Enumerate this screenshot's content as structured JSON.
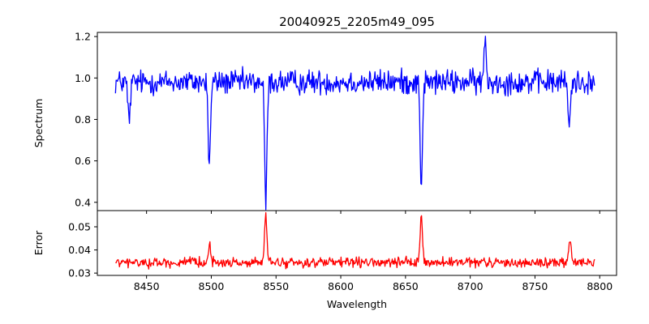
{
  "figure": {
    "title": "20040925_2205m49_095",
    "xlabel": "Wavelength"
  },
  "chart_data": [
    {
      "type": "line",
      "name": "spectrum-panel",
      "title": "20040925_2205m49_095",
      "xlabel": "",
      "ylabel": "Spectrum",
      "xlim": [
        8412,
        8813
      ],
      "ylim": [
        0.36,
        1.22
      ],
      "xticks": [
        8450,
        8500,
        8550,
        8600,
        8650,
        8700,
        8750,
        8800
      ],
      "yticks": [
        0.4,
        0.6,
        0.8,
        1.0,
        1.2
      ],
      "ytick_labels": [
        "0.4",
        "0.6",
        "0.8",
        "1.0",
        "1.2"
      ],
      "grid": false,
      "series": [
        {
          "color": "#0000ff",
          "x_range": [
            8426,
            8796
          ],
          "baseline": 0.98,
          "noise_amplitude": 0.045,
          "features": [
            {
              "x": 8436.5,
              "y": 0.79
            },
            {
              "x": 8498.5,
              "y": 0.58
            },
            {
              "x": 8542.1,
              "y": 0.39
            },
            {
              "x": 8662.2,
              "y": 0.49
            },
            {
              "x": 8711.5,
              "y": 1.17
            },
            {
              "x": 8776.5,
              "y": 0.76
            }
          ]
        }
      ]
    },
    {
      "type": "line",
      "name": "error-panel",
      "xlabel": "Wavelength",
      "ylabel": "Error",
      "xlim": [
        8412,
        8813
      ],
      "ylim": [
        0.029,
        0.057
      ],
      "xticks": [
        8450,
        8500,
        8550,
        8600,
        8650,
        8700,
        8750,
        8800
      ],
      "xtick_labels": [
        "8450",
        "8500",
        "8550",
        "8600",
        "8650",
        "8700",
        "8750",
        "8800"
      ],
      "yticks": [
        0.03,
        0.04,
        0.05
      ],
      "ytick_labels": [
        "0.03",
        "0.04",
        "0.05"
      ],
      "grid": false,
      "series": [
        {
          "color": "#ff0000",
          "x_range": [
            8426,
            8796
          ],
          "baseline": 0.0345,
          "noise_amplitude": 0.0016,
          "features": [
            {
              "x": 8498.5,
              "y": 0.0436
            },
            {
              "x": 8542.1,
              "y": 0.0555
            },
            {
              "x": 8662.2,
              "y": 0.0556
            },
            {
              "x": 8777.0,
              "y": 0.0452
            }
          ]
        }
      ]
    }
  ]
}
